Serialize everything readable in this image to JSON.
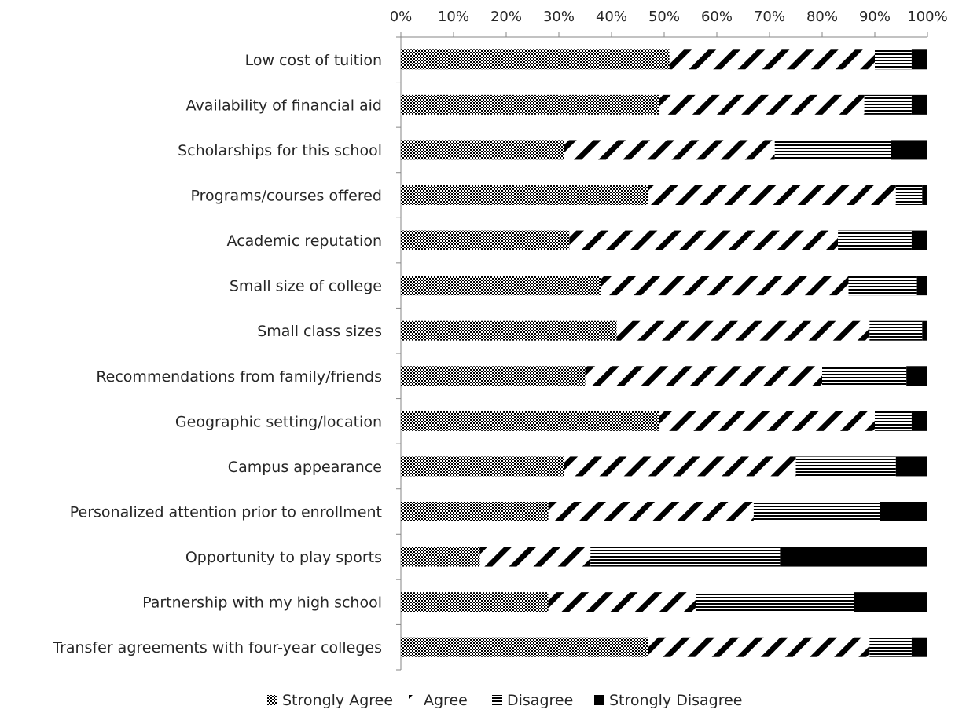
{
  "chart_data": {
    "type": "bar",
    "orientation": "horizontal",
    "stacked": "percent",
    "title": "",
    "xlabel": "",
    "ylabel": "",
    "xlim": [
      0,
      100
    ],
    "x_ticks": [
      "0%",
      "10%",
      "20%",
      "30%",
      "40%",
      "50%",
      "60%",
      "70%",
      "80%",
      "90%",
      "100%"
    ],
    "x_axis_position": "top",
    "grid": false,
    "legend_position": "bottom",
    "categories": [
      "Low cost of tuition",
      "Availability of financial aid",
      "Scholarships for this school",
      "Programs/courses offered",
      "Academic reputation",
      "Small size of college",
      "Small class sizes",
      "Recommendations from family/friends",
      "Geographic setting/location",
      "Campus appearance",
      "Personalized attention prior to enrollment",
      "Opportunity to play sports",
      "Partnership with my high school",
      "Transfer agreements with four-year colleges"
    ],
    "series": [
      {
        "name": "Strongly Agree",
        "pattern": "checker",
        "values": [
          51,
          49,
          31,
          47,
          32,
          38,
          41,
          35,
          49,
          31,
          28,
          15,
          28,
          47
        ]
      },
      {
        "name": "Agree",
        "pattern": "diagonal",
        "values": [
          39,
          39,
          40,
          47,
          51,
          47,
          48,
          45,
          41,
          44,
          39,
          21,
          28,
          42
        ]
      },
      {
        "name": "Disagree",
        "pattern": "horizontal",
        "values": [
          7,
          9,
          22,
          5,
          14,
          13,
          10,
          16,
          7,
          19,
          24,
          36,
          30,
          8
        ]
      },
      {
        "name": "Strongly Disagree",
        "pattern": "solid",
        "values": [
          3,
          3,
          7,
          1,
          3,
          2,
          1,
          4,
          3,
          6,
          9,
          28,
          14,
          3
        ]
      }
    ],
    "colors": {
      "ink": "#000000",
      "axis": "#868686",
      "text": "#262626"
    }
  }
}
